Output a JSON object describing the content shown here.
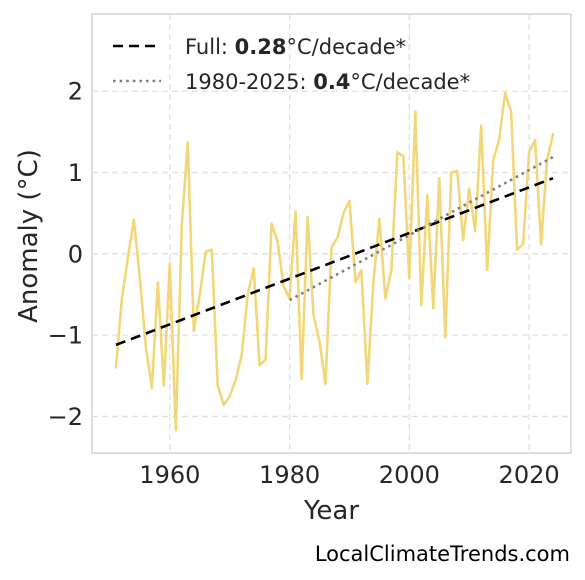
{
  "chart_data": {
    "type": "line",
    "xlabel": "Year",
    "ylabel": "Anomaly (°C)",
    "xlim": [
      1947,
      2027
    ],
    "ylim": [
      -2.45,
      2.95
    ],
    "xticks": [
      1960,
      1980,
      2000,
      2020
    ],
    "yticks": [
      -2,
      -1,
      0,
      1,
      2
    ],
    "xtick_labels": [
      "1960",
      "1980",
      "2000",
      "2020"
    ],
    "ytick_labels": [
      "−2",
      "−1",
      "0",
      "1",
      "2"
    ],
    "grid": true,
    "legend_position": "top-left",
    "series": [
      {
        "color": "#f2d77a",
        "x": [
          1951,
          1952,
          1953,
          1954,
          1955,
          1956,
          1957,
          1958,
          1959,
          1960,
          1961,
          1962,
          1963,
          1964,
          1965,
          1966,
          1967,
          1968,
          1969,
          1970,
          1971,
          1972,
          1973,
          1974,
          1975,
          1976,
          1977,
          1978,
          1979,
          1980,
          1981,
          1982,
          1983,
          1984,
          1985,
          1986,
          1987,
          1988,
          1989,
          1990,
          1991,
          1992,
          1993,
          1994,
          1995,
          1996,
          1997,
          1998,
          1999,
          2000,
          2001,
          2002,
          2003,
          2004,
          2005,
          2006,
          2007,
          2008,
          2009,
          2010,
          2011,
          2012,
          2013,
          2014,
          2015,
          2016,
          2017,
          2018,
          2019,
          2020,
          2021,
          2022,
          2023,
          2024
        ],
        "values": [
          -1.4,
          -0.55,
          -0.05,
          0.42,
          -0.3,
          -1.15,
          -1.65,
          -0.35,
          -1.62,
          -0.12,
          -2.17,
          0.35,
          1.37,
          -0.95,
          -0.5,
          0.03,
          0.05,
          -1.62,
          -1.86,
          -1.75,
          -1.55,
          -1.25,
          -0.5,
          -0.18,
          -1.37,
          -1.3,
          0.37,
          0.15,
          -0.4,
          -0.55,
          0.52,
          -1.54,
          0.45,
          -0.75,
          -1.08,
          -1.6,
          0.08,
          0.2,
          0.5,
          0.65,
          -0.35,
          -0.2,
          -1.6,
          -0.35,
          0.43,
          -0.55,
          -0.2,
          1.25,
          1.2,
          -0.3,
          1.75,
          -0.63,
          0.72,
          -0.67,
          0.93,
          -1.03,
          1.0,
          1.02,
          0.17,
          0.8,
          0.28,
          1.58,
          -0.2,
          1.15,
          1.4,
          1.98,
          1.75,
          0.05,
          0.12,
          1.25,
          1.4,
          0.12,
          1.15,
          1.47
        ]
      }
    ],
    "trend_lines": [
      {
        "legend_prefix": "Full: ",
        "legend_value": "0.28",
        "legend_suffix": "°C/decade*",
        "style": "dashed",
        "color": "#000000",
        "x": [
          1951,
          2024
        ],
        "y": [
          -1.12,
          0.93
        ]
      },
      {
        "legend_prefix": "1980-2025: ",
        "legend_value": "0.4",
        "legend_suffix": "°C/decade*",
        "style": "dotted",
        "color": "#808080",
        "x": [
          1980,
          2024
        ],
        "y": [
          -0.57,
          1.19
        ]
      }
    ]
  },
  "watermark": "LocalClimateTrends.com"
}
